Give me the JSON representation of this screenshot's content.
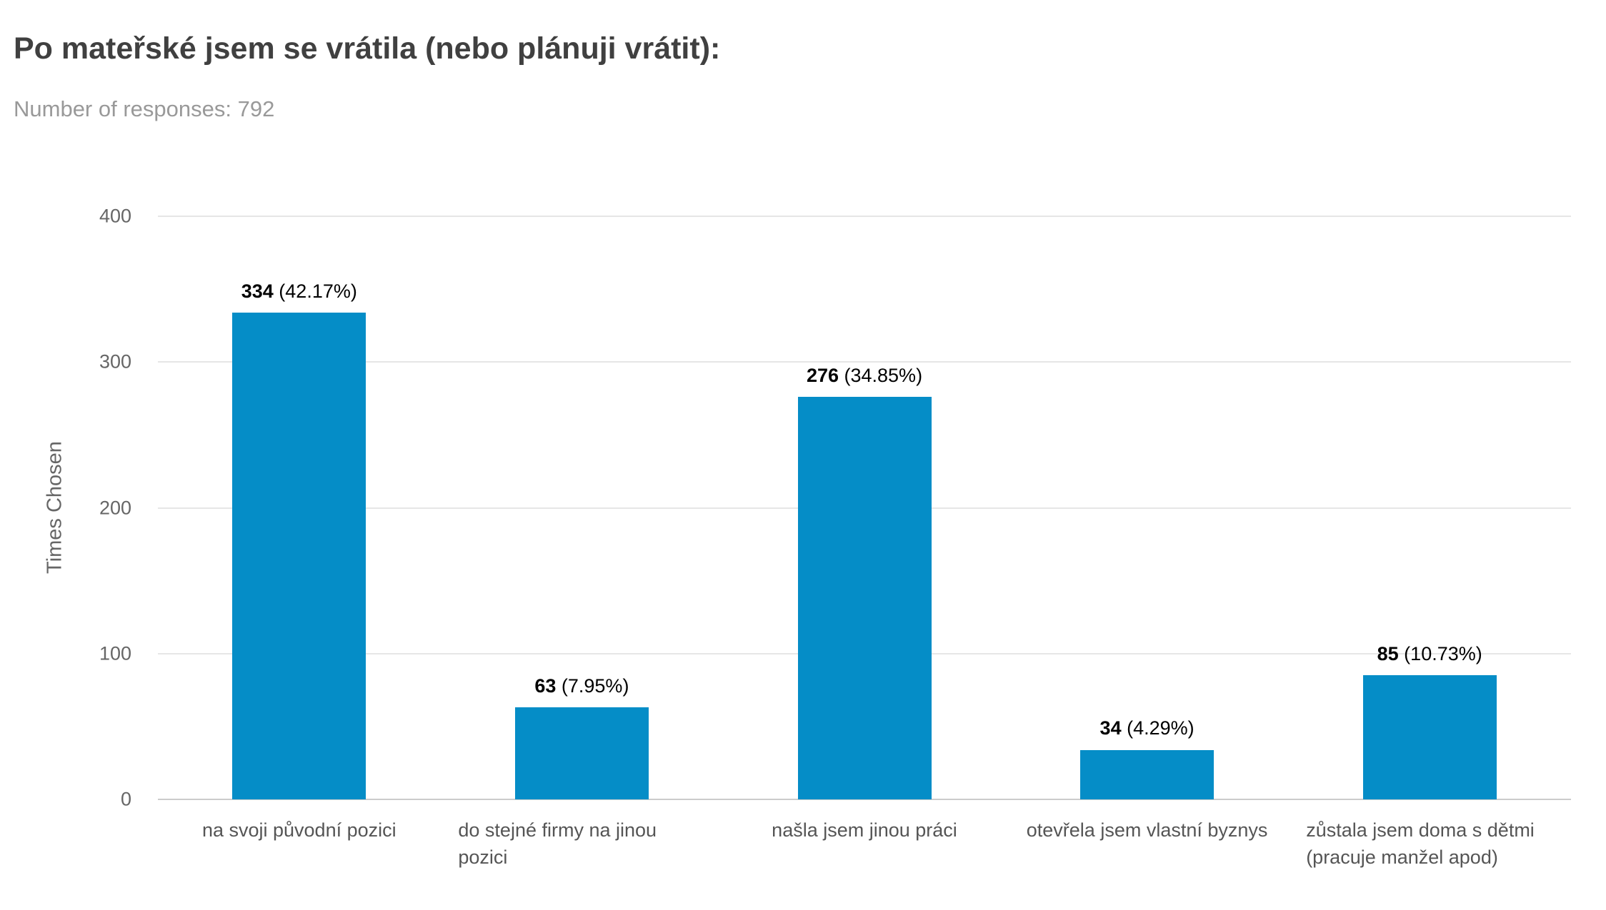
{
  "chart_data": {
    "type": "bar",
    "title": "Po mateřské jsem se vrátila (nebo plánuji vrátit):",
    "subtitle": "Number of responses: 792",
    "categories": [
      "na svoji původní pozici",
      "do stejné firmy na jinou pozici",
      "našla jsem jinou práci",
      "otevřela jsem vlastní byznys",
      "zůstala jsem doma s dětmi (pracuje manžel apod)"
    ],
    "values": [
      334,
      63,
      276,
      34,
      85
    ],
    "percent_labels": [
      "(42.17%)",
      "(7.95%)",
      "(34.85%)",
      "(4.29%)",
      "(10.73%)"
    ],
    "xlabel": "",
    "ylabel": "Times Chosen",
    "ylim": [
      0,
      400
    ],
    "yticks": [
      0,
      100,
      200,
      300,
      400
    ],
    "grid": true,
    "legend": "none",
    "colors": {
      "bar": "#058DC7"
    }
  }
}
